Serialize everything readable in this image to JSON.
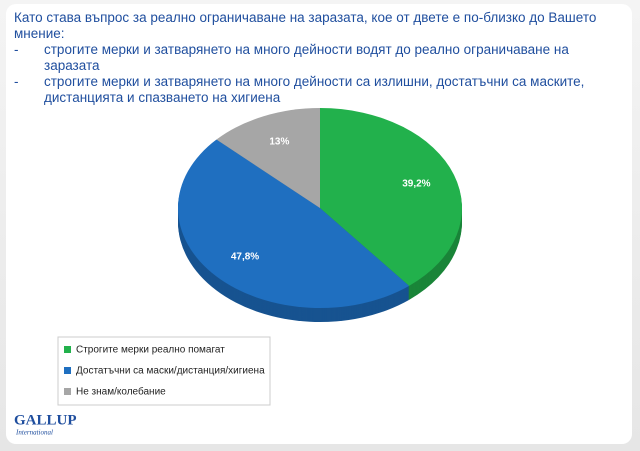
{
  "chart_data": {
    "type": "pie",
    "title": "Като става въпрос за реално ограничаване на заразата, кое от двете е по-близко до Вашето мнение:",
    "notes": [
      "строгите мерки и затварянето на много дейности водят до реално ограничаване на заразата",
      "строгите мерки и затварянето на много дейности са излишни, достатъчни са маските, дистанцията и спазването на хигиена"
    ],
    "categories": [
      "Строгите мерки реално помагат",
      "Достатъчни са маски/дистанция/хигиена",
      "Не знам/колебание"
    ],
    "values": [
      39.2,
      47.8,
      13
    ],
    "value_labels": [
      "39,2%",
      "47,8%",
      "13%"
    ],
    "colors": [
      "#22b14c",
      "#1f6fc0",
      "#a6a6a6"
    ],
    "logo": {
      "name": "GALLUP",
      "sub": "International"
    }
  }
}
